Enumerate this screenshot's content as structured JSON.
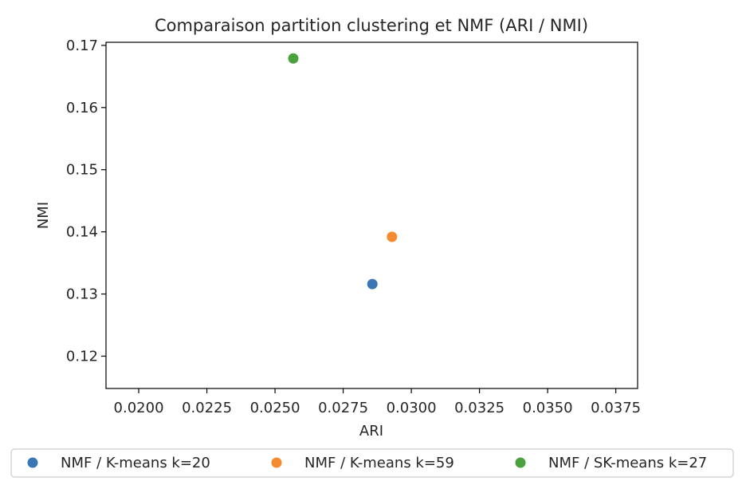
{
  "chart_data": {
    "type": "scatter",
    "title": "Comparaison partition clustering et NMF (ARI / NMI)",
    "xlabel": "ARI",
    "ylabel": "NMI",
    "xlim": [
      0.0188,
      0.0383
    ],
    "ylim": [
      0.1148,
      0.1705
    ],
    "xticks": [
      0.02,
      0.0225,
      0.025,
      0.0275,
      0.03,
      0.0325,
      0.035,
      0.0375
    ],
    "xtick_labels": [
      "0.0200",
      "0.0225",
      "0.0250",
      "0.0275",
      "0.0300",
      "0.0325",
      "0.0350",
      "0.0375"
    ],
    "yticks": [
      0.12,
      0.13,
      0.14,
      0.15,
      0.16,
      0.17
    ],
    "ytick_labels": [
      "0.12",
      "0.13",
      "0.14",
      "0.15",
      "0.16",
      "0.17"
    ],
    "grid": false,
    "legend_position": "bottom",
    "series": [
      {
        "name": "NMF / K-means k=20",
        "color": "#3a76b4",
        "points": [
          {
            "x": 0.02857,
            "y": 0.1316
          }
        ]
      },
      {
        "name": "NMF / K-means k=59",
        "color": "#f58a2e",
        "points": [
          {
            "x": 0.02929,
            "y": 0.1392
          }
        ]
      },
      {
        "name": "NMF / SK-means k=27",
        "color": "#4aa23d",
        "points": [
          {
            "x": 0.02567,
            "y": 0.1679
          }
        ]
      }
    ]
  }
}
